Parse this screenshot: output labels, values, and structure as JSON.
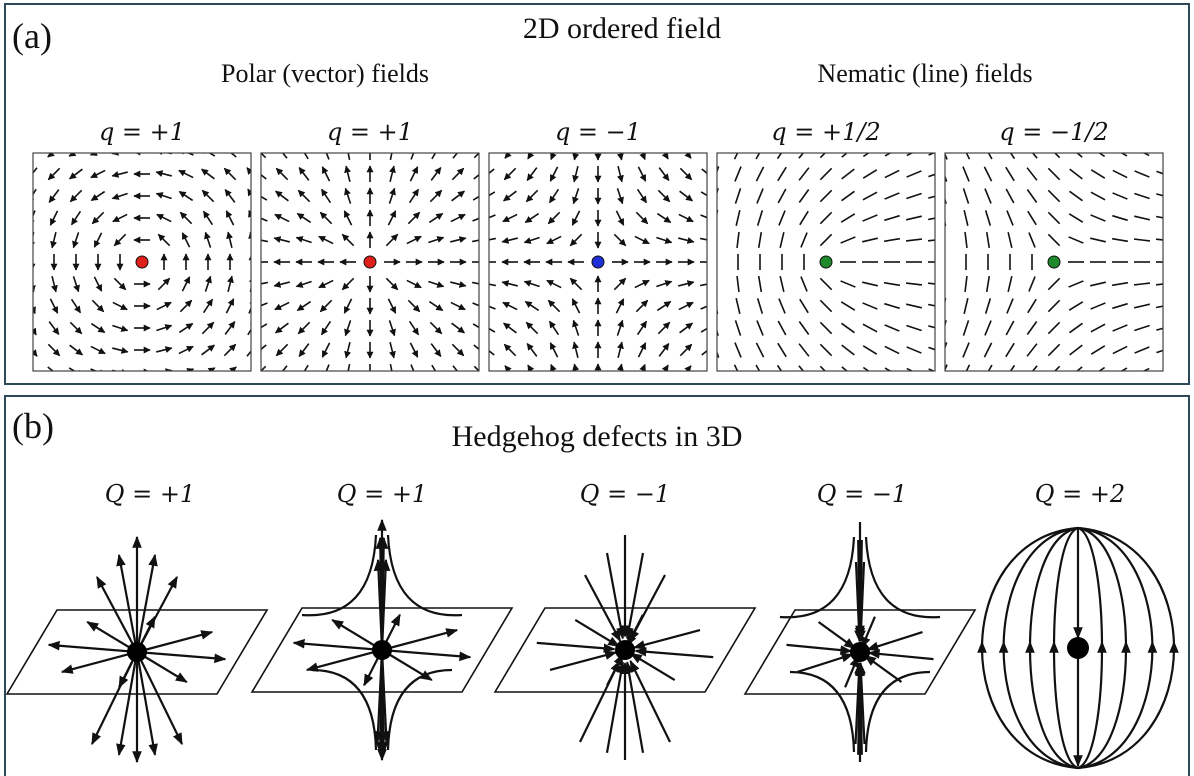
{
  "panel_a": {
    "label": "(a)",
    "title": "2D ordered field",
    "subtitles": [
      "Polar (vector) fields",
      "Nematic (line) fields"
    ],
    "fields": [
      {
        "label": "q = +1"
      },
      {
        "label": "q = +1"
      },
      {
        "label": "q = −1"
      },
      {
        "label": "q = +1/2"
      },
      {
        "label": "q = −1/2"
      }
    ]
  },
  "panel_b": {
    "label": "(b)",
    "title": "Hedgehog defects in 3D",
    "defects": [
      {
        "label": "Q = +1"
      },
      {
        "label": "Q = +1"
      },
      {
        "label": "Q = −1"
      },
      {
        "label": "Q = −1"
      },
      {
        "label": "Q = +2"
      }
    ]
  }
}
